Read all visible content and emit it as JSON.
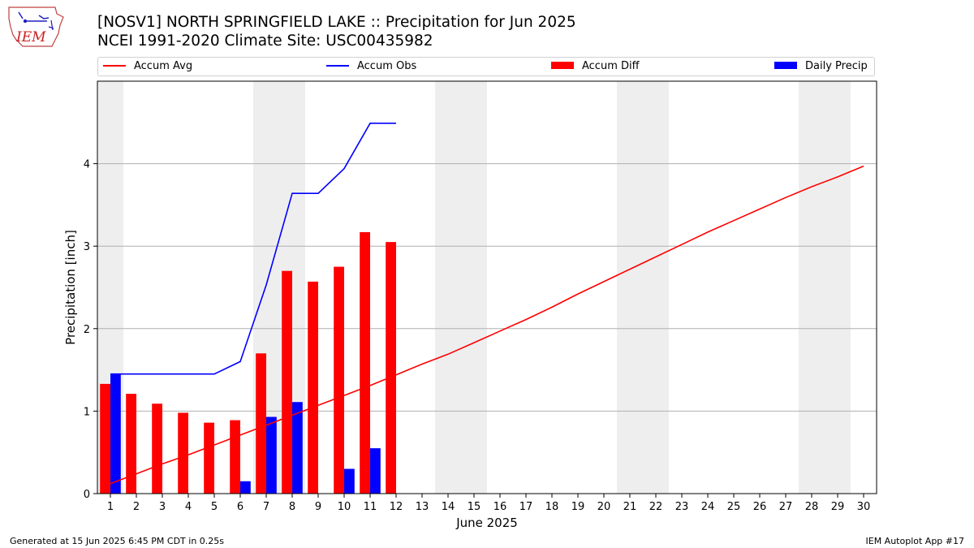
{
  "header": {
    "title_line1": "[NOSV1] NORTH SPRINGFIELD LAKE :: Precipitation for Jun 2025",
    "title_line2": "NCEI 1991-2020 Climate Site: USC00435982",
    "logo_text": "IEM"
  },
  "legend": {
    "accum_avg": "Accum Avg",
    "accum_obs": "Accum Obs",
    "accum_diff": "Accum Diff",
    "daily_precip": "Daily Precip"
  },
  "footer": {
    "generated": "Generated at 15 Jun 2025 6:45 PM CDT in 0.25s",
    "app": "IEM Autoplot App #17"
  },
  "colors": {
    "accum_avg": "#ff0000",
    "accum_obs": "#0000ff",
    "accum_diff": "#ff0000",
    "daily_precip": "#0000ff",
    "weekend_shade": "#eeeeee",
    "grid": "#b0b0b0"
  },
  "chart_data": {
    "type": "bar",
    "xlabel": "June 2025",
    "ylabel": "Precipitation [inch]",
    "xlim": [
      0.5,
      30.5
    ],
    "ylim": [
      0,
      5
    ],
    "yticks": [
      0,
      1,
      2,
      3,
      4
    ],
    "x_ticks": [
      1,
      2,
      3,
      4,
      5,
      6,
      7,
      8,
      9,
      10,
      11,
      12,
      13,
      14,
      15,
      16,
      17,
      18,
      19,
      20,
      21,
      22,
      23,
      24,
      25,
      26,
      27,
      28,
      29,
      30
    ],
    "grid": "horizontal",
    "legend_placement": "top",
    "weekend_days": [
      1,
      7,
      8,
      14,
      15,
      21,
      22,
      28,
      29
    ],
    "series": [
      {
        "name": "Accum Avg",
        "kind": "line",
        "x": [
          1,
          2,
          3,
          4,
          5,
          6,
          7,
          8,
          9,
          10,
          11,
          12,
          13,
          14,
          15,
          16,
          17,
          18,
          19,
          20,
          21,
          22,
          23,
          24,
          25,
          26,
          27,
          28,
          29,
          30
        ],
        "values": [
          0.12,
          0.24,
          0.36,
          0.47,
          0.59,
          0.71,
          0.83,
          0.95,
          1.07,
          1.19,
          1.31,
          1.44,
          1.57,
          1.69,
          1.83,
          1.97,
          2.11,
          2.26,
          2.42,
          2.57,
          2.72,
          2.87,
          3.02,
          3.17,
          3.31,
          3.45,
          3.59,
          3.72,
          3.84,
          3.97
        ]
      },
      {
        "name": "Accum Obs",
        "kind": "line",
        "x": [
          1,
          2,
          3,
          4,
          5,
          6,
          7,
          8,
          9,
          10,
          11,
          12
        ],
        "values": [
          1.45,
          1.45,
          1.45,
          1.45,
          1.45,
          1.6,
          2.53,
          3.64,
          3.64,
          3.94,
          4.49,
          4.49
        ]
      },
      {
        "name": "Accum Diff",
        "kind": "bar",
        "x": [
          1,
          2,
          3,
          4,
          5,
          6,
          7,
          8,
          9,
          10,
          11,
          12
        ],
        "values": [
          1.33,
          1.21,
          1.09,
          0.98,
          0.86,
          0.89,
          1.7,
          2.7,
          2.57,
          2.75,
          3.17,
          3.05
        ]
      },
      {
        "name": "Daily Precip",
        "kind": "bar",
        "x": [
          1,
          2,
          3,
          4,
          5,
          6,
          7,
          8,
          9,
          10,
          11,
          12
        ],
        "values": [
          1.45,
          0,
          0,
          0,
          0,
          0.15,
          0.93,
          1.11,
          0,
          0.3,
          0.55,
          0
        ]
      }
    ]
  }
}
